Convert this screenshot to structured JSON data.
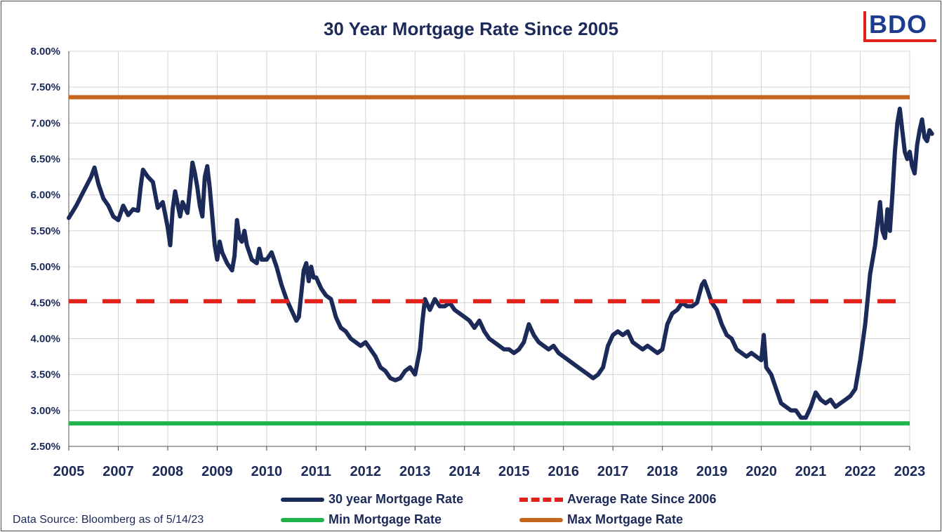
{
  "chart_data": {
    "type": "line",
    "title": "30 Year Mortgage Rate Since 2005",
    "source": "Data Source: Bloomberg as of 5/14/23",
    "ylim": [
      2.5,
      8.0
    ],
    "y_ticks": [
      "2.50%",
      "3.00%",
      "3.50%",
      "4.00%",
      "4.50%",
      "5.00%",
      "5.50%",
      "6.00%",
      "6.50%",
      "7.00%",
      "7.50%",
      "8.00%"
    ],
    "x_ticks": [
      "2005",
      "2007",
      "2008",
      "2009",
      "2010",
      "2011",
      "2012",
      "2013",
      "2014",
      "2015",
      "2016",
      "2017",
      "2018",
      "2019",
      "2020",
      "2021",
      "2022",
      "2023"
    ],
    "grid": true,
    "legend_position": "bottom",
    "series": [
      {
        "name": "30 year Mortgage Rate",
        "color": "#1c2a5a",
        "style": "solid",
        "points": [
          [
            0.0,
            5.68
          ],
          [
            0.15,
            5.85
          ],
          [
            0.3,
            6.05
          ],
          [
            0.45,
            6.25
          ],
          [
            0.52,
            6.38
          ],
          [
            0.6,
            6.15
          ],
          [
            0.7,
            5.95
          ],
          [
            0.8,
            5.85
          ],
          [
            0.9,
            5.7
          ],
          [
            1.0,
            5.65
          ],
          [
            1.1,
            5.85
          ],
          [
            1.2,
            5.72
          ],
          [
            1.3,
            5.8
          ],
          [
            1.4,
            5.78
          ],
          [
            1.45,
            6.1
          ],
          [
            1.5,
            6.35
          ],
          [
            1.55,
            6.3
          ],
          [
            1.6,
            6.25
          ],
          [
            1.7,
            6.18
          ],
          [
            1.8,
            5.82
          ],
          [
            1.9,
            5.9
          ],
          [
            2.0,
            5.55
          ],
          [
            2.05,
            5.3
          ],
          [
            2.1,
            5.8
          ],
          [
            2.15,
            6.05
          ],
          [
            2.25,
            5.7
          ],
          [
            2.3,
            5.9
          ],
          [
            2.4,
            5.75
          ],
          [
            2.45,
            6.1
          ],
          [
            2.5,
            6.45
          ],
          [
            2.55,
            6.3
          ],
          [
            2.6,
            6.1
          ],
          [
            2.65,
            5.85
          ],
          [
            2.7,
            5.7
          ],
          [
            2.75,
            6.25
          ],
          [
            2.8,
            6.4
          ],
          [
            2.85,
            6.1
          ],
          [
            2.9,
            5.7
          ],
          [
            2.95,
            5.3
          ],
          [
            3.0,
            5.1
          ],
          [
            3.05,
            5.35
          ],
          [
            3.1,
            5.2
          ],
          [
            3.2,
            5.05
          ],
          [
            3.3,
            4.95
          ],
          [
            3.35,
            5.15
          ],
          [
            3.4,
            5.65
          ],
          [
            3.45,
            5.4
          ],
          [
            3.5,
            5.35
          ],
          [
            3.55,
            5.5
          ],
          [
            3.6,
            5.3
          ],
          [
            3.7,
            5.1
          ],
          [
            3.8,
            5.05
          ],
          [
            3.85,
            5.25
          ],
          [
            3.9,
            5.1
          ],
          [
            4.0,
            5.1
          ],
          [
            4.1,
            5.2
          ],
          [
            4.2,
            5.0
          ],
          [
            4.3,
            4.75
          ],
          [
            4.4,
            4.55
          ],
          [
            4.5,
            4.4
          ],
          [
            4.6,
            4.25
          ],
          [
            4.65,
            4.3
          ],
          [
            4.75,
            4.95
          ],
          [
            4.8,
            5.05
          ],
          [
            4.85,
            4.8
          ],
          [
            4.9,
            5.0
          ],
          [
            4.95,
            4.85
          ],
          [
            5.0,
            4.85
          ],
          [
            5.1,
            4.7
          ],
          [
            5.2,
            4.6
          ],
          [
            5.3,
            4.55
          ],
          [
            5.4,
            4.3
          ],
          [
            5.5,
            4.15
          ],
          [
            5.6,
            4.1
          ],
          [
            5.7,
            4.0
          ],
          [
            5.8,
            3.95
          ],
          [
            5.9,
            3.9
          ],
          [
            6.0,
            3.95
          ],
          [
            6.1,
            3.85
          ],
          [
            6.2,
            3.75
          ],
          [
            6.3,
            3.6
          ],
          [
            6.4,
            3.55
          ],
          [
            6.5,
            3.45
          ],
          [
            6.6,
            3.42
          ],
          [
            6.7,
            3.45
          ],
          [
            6.8,
            3.55
          ],
          [
            6.9,
            3.6
          ],
          [
            7.0,
            3.5
          ],
          [
            7.1,
            3.85
          ],
          [
            7.15,
            4.25
          ],
          [
            7.2,
            4.55
          ],
          [
            7.3,
            4.4
          ],
          [
            7.4,
            4.55
          ],
          [
            7.5,
            4.45
          ],
          [
            7.6,
            4.45
          ],
          [
            7.7,
            4.5
          ],
          [
            7.8,
            4.4
          ],
          [
            7.9,
            4.35
          ],
          [
            8.0,
            4.3
          ],
          [
            8.1,
            4.25
          ],
          [
            8.2,
            4.15
          ],
          [
            8.3,
            4.25
          ],
          [
            8.4,
            4.1
          ],
          [
            8.5,
            4.0
          ],
          [
            8.6,
            3.95
          ],
          [
            8.7,
            3.9
          ],
          [
            8.8,
            3.85
          ],
          [
            8.9,
            3.85
          ],
          [
            9.0,
            3.8
          ],
          [
            9.1,
            3.85
          ],
          [
            9.2,
            3.95
          ],
          [
            9.3,
            4.2
          ],
          [
            9.4,
            4.05
          ],
          [
            9.5,
            3.95
          ],
          [
            9.6,
            3.9
          ],
          [
            9.7,
            3.85
          ],
          [
            9.8,
            3.9
          ],
          [
            9.9,
            3.8
          ],
          [
            10.0,
            3.75
          ],
          [
            10.1,
            3.7
          ],
          [
            10.2,
            3.65
          ],
          [
            10.3,
            3.6
          ],
          [
            10.4,
            3.55
          ],
          [
            10.5,
            3.5
          ],
          [
            10.6,
            3.45
          ],
          [
            10.7,
            3.5
          ],
          [
            10.8,
            3.6
          ],
          [
            10.9,
            3.9
          ],
          [
            11.0,
            4.05
          ],
          [
            11.1,
            4.1
          ],
          [
            11.2,
            4.05
          ],
          [
            11.3,
            4.1
          ],
          [
            11.4,
            3.95
          ],
          [
            11.5,
            3.9
          ],
          [
            11.6,
            3.85
          ],
          [
            11.7,
            3.9
          ],
          [
            11.8,
            3.85
          ],
          [
            11.9,
            3.8
          ],
          [
            12.0,
            3.85
          ],
          [
            12.1,
            4.2
          ],
          [
            12.2,
            4.35
          ],
          [
            12.3,
            4.4
          ],
          [
            12.4,
            4.5
          ],
          [
            12.5,
            4.45
          ],
          [
            12.6,
            4.45
          ],
          [
            12.7,
            4.5
          ],
          [
            12.8,
            4.75
          ],
          [
            12.85,
            4.8
          ],
          [
            12.9,
            4.7
          ],
          [
            13.0,
            4.5
          ],
          [
            13.1,
            4.4
          ],
          [
            13.2,
            4.2
          ],
          [
            13.3,
            4.05
          ],
          [
            13.4,
            4.0
          ],
          [
            13.5,
            3.85
          ],
          [
            13.6,
            3.8
          ],
          [
            13.7,
            3.75
          ],
          [
            13.8,
            3.8
          ],
          [
            13.9,
            3.75
          ],
          [
            14.0,
            3.7
          ],
          [
            14.05,
            4.05
          ],
          [
            14.1,
            3.6
          ],
          [
            14.2,
            3.5
          ],
          [
            14.3,
            3.3
          ],
          [
            14.4,
            3.1
          ],
          [
            14.5,
            3.05
          ],
          [
            14.6,
            3.0
          ],
          [
            14.7,
            3.0
          ],
          [
            14.8,
            2.9
          ],
          [
            14.9,
            2.9
          ],
          [
            15.0,
            3.05
          ],
          [
            15.1,
            3.25
          ],
          [
            15.2,
            3.15
          ],
          [
            15.3,
            3.1
          ],
          [
            15.4,
            3.15
          ],
          [
            15.5,
            3.05
          ],
          [
            15.6,
            3.1
          ],
          [
            15.7,
            3.15
          ],
          [
            15.8,
            3.2
          ],
          [
            15.9,
            3.3
          ],
          [
            16.0,
            3.7
          ],
          [
            16.1,
            4.2
          ],
          [
            16.2,
            4.9
          ],
          [
            16.3,
            5.3
          ],
          [
            16.35,
            5.6
          ],
          [
            16.4,
            5.9
          ],
          [
            16.45,
            5.5
          ],
          [
            16.5,
            5.4
          ],
          [
            16.55,
            5.8
          ],
          [
            16.6,
            5.5
          ],
          [
            16.65,
            6.0
          ],
          [
            16.7,
            6.6
          ],
          [
            16.75,
            7.0
          ],
          [
            16.8,
            7.2
          ],
          [
            16.85,
            6.9
          ],
          [
            16.9,
            6.6
          ],
          [
            16.95,
            6.5
          ],
          [
            17.0,
            6.6
          ],
          [
            17.05,
            6.4
          ],
          [
            17.1,
            6.3
          ],
          [
            17.15,
            6.7
          ],
          [
            17.2,
            6.9
          ],
          [
            17.25,
            7.05
          ],
          [
            17.3,
            6.8
          ],
          [
            17.35,
            6.75
          ],
          [
            17.4,
            6.9
          ],
          [
            17.45,
            6.85
          ]
        ]
      },
      {
        "name": "Average Rate Since 2006",
        "color": "#e2211c",
        "style": "dashed",
        "value": 4.52
      },
      {
        "name": "Min Mortgage Rate",
        "color": "#1fb34a",
        "style": "solid",
        "value": 2.82
      },
      {
        "name": "Max Mortgage Rate",
        "color": "#c5661f",
        "style": "solid",
        "value": 7.36
      }
    ]
  },
  "logo": {
    "text": "BDO"
  }
}
